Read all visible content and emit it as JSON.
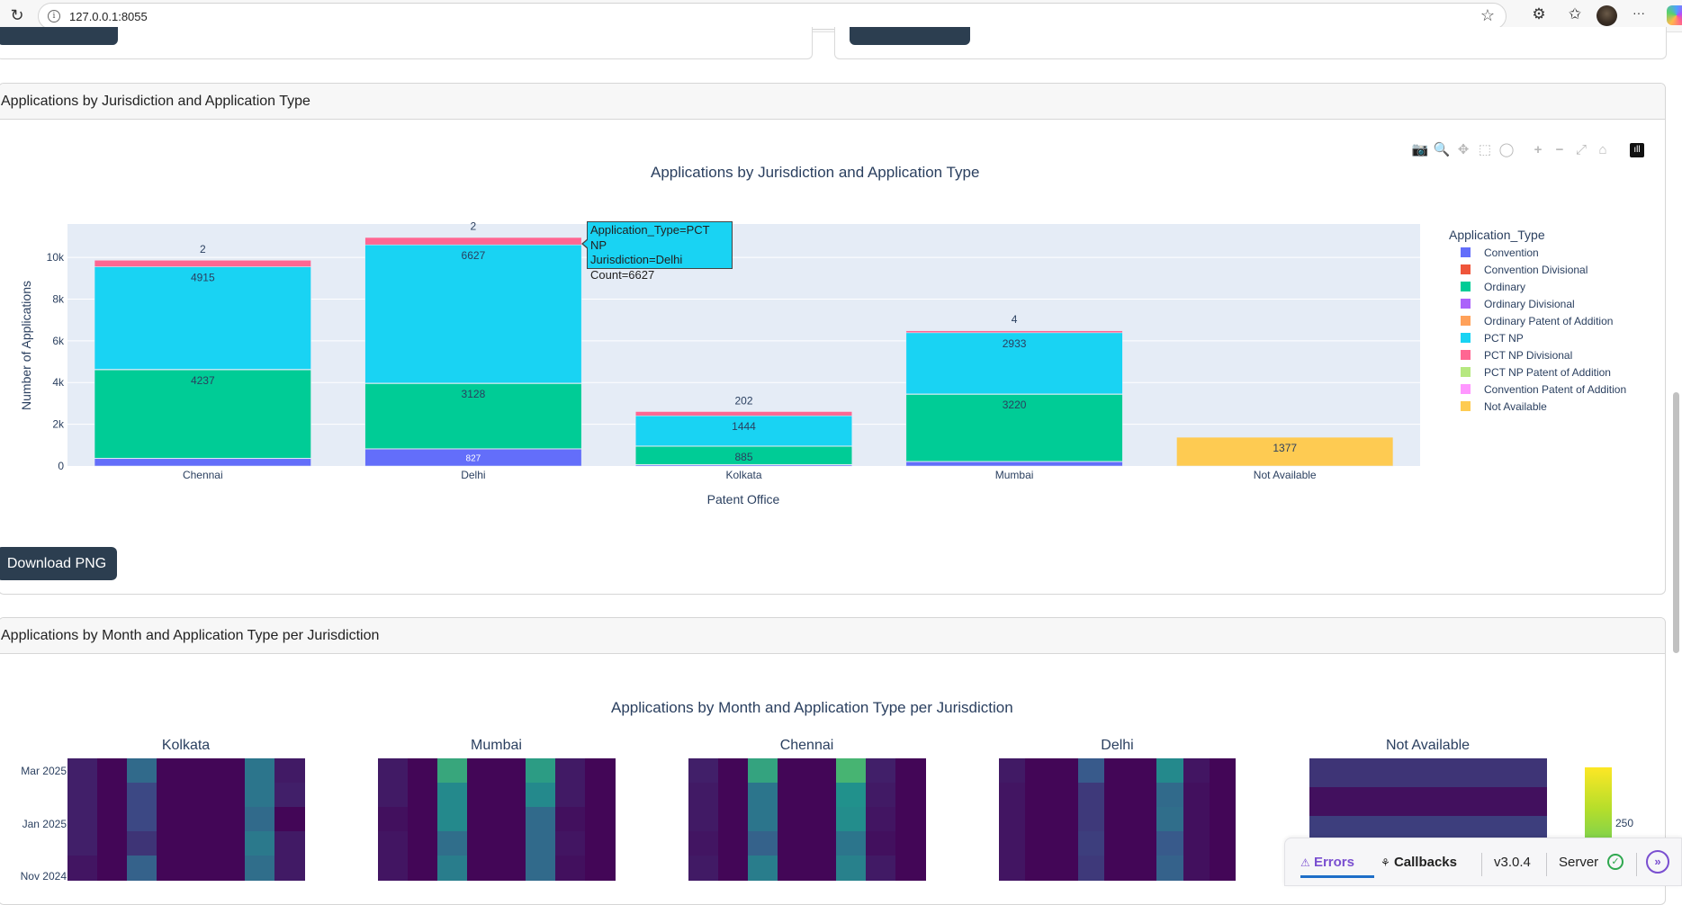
{
  "browser": {
    "url": "127.0.0.1:8055",
    "reload_icon": "↻",
    "info_icon": "i",
    "star_icon": "☆",
    "extensions_icon": "⚙",
    "favorites_icon": "✩",
    "more_icon": "···"
  },
  "section1": {
    "header": "Applications by Jurisdiction and Application Type",
    "download_label": "Download PNG"
  },
  "section2": {
    "header": "Applications by Month and Application Type per Jurisdiction"
  },
  "modebar": {
    "camera": "📷",
    "zoom": "🔍",
    "pan": "✥",
    "box_select": "⬚",
    "lasso": "◯",
    "zoom_in": "+",
    "zoom_out": "−",
    "autoscale": "⤢",
    "reset": "⌂",
    "logo": "ıll"
  },
  "tooltip": {
    "line1": "Application_Type=PCT NP",
    "line2": "Jurisdiction=Delhi",
    "line3": "Count=6627"
  },
  "chart_data": [
    {
      "type": "bar",
      "barmode": "stack",
      "title": "Applications by Jurisdiction and Application Type",
      "xlabel": "Patent Office",
      "ylabel": "Number of Applications",
      "ylim": [
        0,
        11600
      ],
      "yticks": [
        0,
        2000,
        4000,
        6000,
        8000,
        10000
      ],
      "ytick_labels": [
        "0",
        "2k",
        "4k",
        "6k",
        "8k",
        "10k"
      ],
      "grid": true,
      "legend_title": "Application_Type",
      "legend_position": "right",
      "categories": [
        "Chennai",
        "Delhi",
        "Kolkata",
        "Mumbai",
        "Not Available"
      ],
      "series": [
        {
          "name": "Convention",
          "color": "#636efa",
          "values": [
            370,
            827,
            70,
            220,
            0
          ],
          "labels": [
            "",
            "827",
            "",
            "",
            ""
          ]
        },
        {
          "name": "Convention Divisional",
          "color": "#ef553b",
          "values": [
            5,
            5,
            2,
            3,
            0
          ],
          "labels": [
            "",
            "",
            "",
            "",
            ""
          ]
        },
        {
          "name": "Ordinary",
          "color": "#00cc96",
          "values": [
            4237,
            3128,
            885,
            3220,
            0
          ],
          "labels": [
            "4237",
            "3128",
            "885",
            "3220",
            ""
          ]
        },
        {
          "name": "Ordinary Divisional",
          "color": "#ab63fa",
          "values": [
            20,
            10,
            5,
            10,
            0
          ],
          "labels": [
            "",
            "",
            "",
            "",
            ""
          ]
        },
        {
          "name": "Ordinary Patent of Addition",
          "color": "#ffa15a",
          "values": [
            5,
            5,
            1,
            3,
            0
          ],
          "labels": [
            "",
            "",
            "",
            "",
            ""
          ]
        },
        {
          "name": "PCT NP",
          "color": "#19d3f3",
          "values": [
            4915,
            6627,
            1444,
            2933,
            0
          ],
          "labels": [
            "4915",
            "6627",
            "1444",
            "2933",
            ""
          ]
        },
        {
          "name": "PCT NP Divisional",
          "color": "#ff6692",
          "values": [
            330,
            370,
            202,
            110,
            0
          ],
          "labels": [
            "",
            "",
            "",
            "",
            ""
          ]
        },
        {
          "name": "PCT NP Patent of Addition",
          "color": "#b6e880",
          "values": [
            2,
            2,
            0,
            4,
            0
          ],
          "labels": [
            "2",
            "2",
            "",
            "4",
            ""
          ]
        },
        {
          "name": "Convention Patent of Addition",
          "color": "#ff97ff",
          "values": [
            0,
            0,
            0,
            0,
            0
          ],
          "labels": [
            "",
            "",
            "",
            "",
            ""
          ]
        },
        {
          "name": "Not Available",
          "color": "#fecb52",
          "values": [
            0,
            0,
            0,
            0,
            1377
          ],
          "labels": [
            "",
            "",
            "",
            "",
            "1377"
          ]
        }
      ],
      "top_labels": [
        "2",
        "2",
        "202",
        "4",
        ""
      ]
    },
    {
      "type": "heatmap",
      "title": "Applications by Month and Application Type per Jurisdiction",
      "colorscale": "viridis",
      "colorbar_tick": "250",
      "ytick_labels": [
        "Mar 2025",
        "Jan 2025",
        "Nov 2024"
      ],
      "subplots": [
        {
          "name": "Kolkata",
          "z": [
            [
              30,
              5,
              110,
              5,
              5,
              5,
              125,
              25
            ],
            [
              30,
              5,
              70,
              5,
              5,
              5,
              125,
              30
            ],
            [
              30,
              5,
              70,
              5,
              5,
              5,
              110,
              5
            ],
            [
              30,
              5,
              50,
              5,
              5,
              5,
              130,
              25
            ],
            [
              20,
              5,
              100,
              5,
              5,
              5,
              115,
              25
            ]
          ]
        },
        {
          "name": "Mumbai",
          "z": [
            [
              25,
              5,
              190,
              5,
              5,
              175,
              25,
              5
            ],
            [
              25,
              5,
              150,
              5,
              5,
              150,
              25,
              5
            ],
            [
              15,
              5,
              150,
              5,
              5,
              110,
              15,
              5
            ],
            [
              20,
              5,
              115,
              5,
              5,
              110,
              20,
              5
            ],
            [
              20,
              5,
              135,
              5,
              5,
              110,
              15,
              5
            ]
          ]
        },
        {
          "name": "Chennai",
          "z": [
            [
              30,
              5,
              185,
              5,
              5,
              210,
              30,
              5
            ],
            [
              25,
              5,
              125,
              5,
              5,
              160,
              25,
              5
            ],
            [
              25,
              5,
              125,
              5,
              5,
              155,
              20,
              5
            ],
            [
              20,
              5,
              100,
              5,
              5,
              125,
              15,
              5
            ],
            [
              25,
              5,
              135,
              5,
              5,
              140,
              25,
              5
            ]
          ]
        },
        {
          "name": "Delhi",
          "z": [
            [
              25,
              5,
              5,
              90,
              5,
              5,
              150,
              20,
              5
            ],
            [
              20,
              5,
              5,
              55,
              5,
              5,
              110,
              15,
              5
            ],
            [
              20,
              5,
              5,
              55,
              5,
              5,
              115,
              15,
              5
            ],
            [
              20,
              5,
              5,
              60,
              5,
              5,
              90,
              15,
              5
            ],
            [
              20,
              5,
              5,
              55,
              5,
              5,
              100,
              15,
              5
            ]
          ]
        },
        {
          "name": "Not Available",
          "z": [
            [
              50
            ],
            [
              15
            ],
            [
              60
            ]
          ]
        }
      ]
    }
  ],
  "devtools": {
    "errors_label": "Errors",
    "errors_icon": "⚠",
    "callbacks_label": "Callbacks",
    "callbacks_icon": "⚘",
    "version": "v3.0.4",
    "server_label": "Server",
    "server_status_icon": "✓",
    "expand_icon": "»"
  }
}
